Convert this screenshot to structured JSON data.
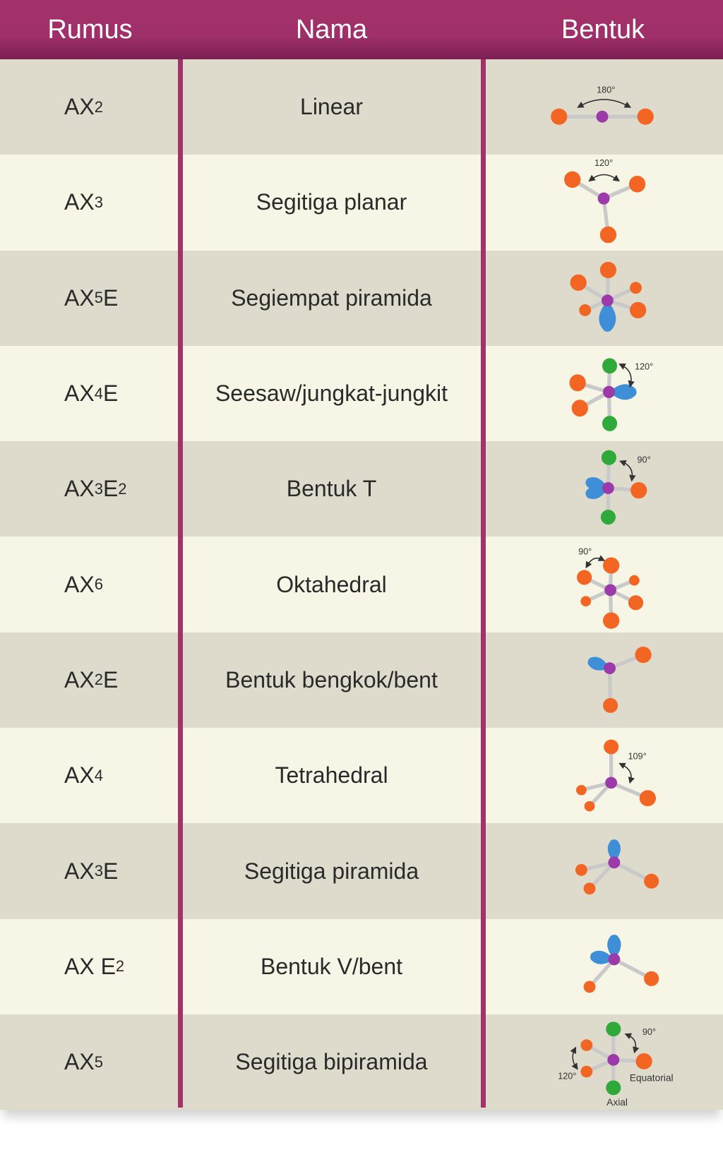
{
  "header": {
    "rumus": "Rumus",
    "nama": "Nama",
    "bentuk": "Bentuk"
  },
  "colors": {
    "header": "#a3326a",
    "row_odd": "#dedbcc",
    "row_even": "#f7f6e6",
    "atom_x": "#f26522",
    "atom_central": "#9b3aa8",
    "atom_axial": "#2faa3a",
    "lone_pair": "#3f8fd8"
  },
  "rows": [
    {
      "formula": [
        {
          "t": "AX"
        },
        {
          "s": "2"
        }
      ],
      "name": "Linear",
      "shape": "linear",
      "labels": [
        "180°"
      ]
    },
    {
      "formula": [
        {
          "t": "AX"
        },
        {
          "s": "3"
        }
      ],
      "name": "Segitiga planar",
      "shape": "trigonal-planar",
      "labels": [
        "120°"
      ]
    },
    {
      "formula": [
        {
          "t": "AX"
        },
        {
          "s": "5"
        },
        {
          "t": "E"
        }
      ],
      "name": "Segiempat piramida",
      "shape": "square-pyramidal",
      "labels": []
    },
    {
      "formula": [
        {
          "t": "AX"
        },
        {
          "s": "4"
        },
        {
          "t": "E"
        }
      ],
      "name": "Seesaw/jungkat-jungkit",
      "shape": "seesaw",
      "labels": [
        "120°"
      ]
    },
    {
      "formula": [
        {
          "t": "AX"
        },
        {
          "s": "3"
        },
        {
          "t": "E"
        },
        {
          "s": "2"
        }
      ],
      "name": "Bentuk T",
      "shape": "t-shaped",
      "labels": [
        "90°"
      ]
    },
    {
      "formula": [
        {
          "t": "AX"
        },
        {
          "s": "6"
        }
      ],
      "name": "Oktahedral",
      "shape": "octahedral",
      "labels": [
        "90°"
      ]
    },
    {
      "formula": [
        {
          "t": "AX"
        },
        {
          "s": "2"
        },
        {
          "t": "E"
        }
      ],
      "name": "Bentuk bengkok/bent",
      "shape": "bent-1lp",
      "labels": []
    },
    {
      "formula": [
        {
          "t": "AX"
        },
        {
          "s": "4"
        }
      ],
      "name": "Tetrahedral",
      "shape": "tetrahedral",
      "labels": [
        "109°"
      ]
    },
    {
      "formula": [
        {
          "t": "AX"
        },
        {
          "s": "3"
        },
        {
          "t": "E"
        }
      ],
      "name": "Segitiga piramida",
      "shape": "trigonal-pyramidal",
      "labels": []
    },
    {
      "formula": [
        {
          "t": "AX E"
        },
        {
          "s": "2"
        }
      ],
      "name": "Bentuk V/bent",
      "shape": "bent-2lp",
      "labels": []
    },
    {
      "formula": [
        {
          "t": "AX"
        },
        {
          "s": "5"
        }
      ],
      "name": "Segitiga bipiramida",
      "shape": "trigonal-bipyramidal",
      "labels": [
        "90°",
        "120°",
        "Equatorial",
        "Axial"
      ]
    }
  ]
}
